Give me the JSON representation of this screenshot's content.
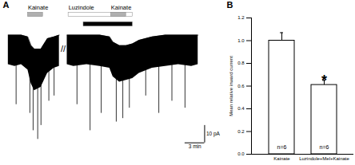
{
  "chart_data": [
    {
      "type": "trace",
      "panel_label": "A",
      "color": "#000000",
      "tick_labels": false,
      "xlim": [
        -1.2,
        33
      ],
      "ylim": [
        -75,
        20
      ],
      "segments": [
        {
          "x": [
            0,
            1,
            2,
            3,
            3.5,
            4,
            5,
            5.5,
            6,
            7,
            7.8
          ],
          "upper": [
            0,
            0,
            0,
            -1,
            -6,
            -8,
            -8,
            -5,
            -2,
            -1,
            0
          ],
          "lower": [
            -17,
            -18,
            -17,
            -20,
            -28,
            -32,
            -30,
            -26,
            -22,
            -19,
            -18
          ]
        },
        {
          "x": [
            9,
            10,
            12,
            14,
            15.5,
            16,
            17,
            18,
            19,
            20,
            22,
            24,
            26,
            28,
            29
          ],
          "upper": [
            0,
            0,
            0,
            0,
            -1,
            -4,
            -6,
            -6,
            -5,
            -3,
            -1,
            0,
            0,
            0,
            0
          ],
          "lower": [
            -17,
            -18,
            -17,
            -18,
            -19,
            -24,
            -27,
            -26,
            -25,
            -22,
            -19,
            -18,
            -17,
            -18,
            -17
          ]
        }
      ],
      "spikes": {
        "x": [
          1.2,
          3.3,
          3.8,
          4.5,
          5.0,
          6.2,
          7.0,
          10.5,
          12.5,
          14.2,
          16.5,
          17.5,
          18.5,
          21,
          23,
          25,
          27
        ],
        "y": [
          -40,
          -45,
          -55,
          -60,
          -52,
          -38,
          -35,
          -40,
          -55,
          -45,
          -50,
          -48,
          -42,
          -35,
          -45,
          -38,
          -42
        ]
      },
      "applications": [
        {
          "label": "Kainate",
          "start": 3.0,
          "end": 5.3,
          "color": "#b0b0b0"
        },
        {
          "label": "Luzindole",
          "start": 9.2,
          "end": 19,
          "color": "#ffffff"
        },
        {
          "label": null,
          "start": 11.5,
          "end": 19,
          "color": "#000000"
        },
        {
          "label": "Kainate",
          "start": 15.7,
          "end": 18,
          "color": "#b0b0b0"
        }
      ],
      "break_label": "//",
      "break_x": 8.4,
      "scale_bars": {
        "x": {
          "value": 3,
          "label": "3 min"
        },
        "y": {
          "value": 10,
          "label": "10 pA"
        }
      }
    },
    {
      "type": "bar",
      "panel_label": "B",
      "categories": [
        "Kainate",
        "Luzindole+Mel+Kainate"
      ],
      "values": [
        1.0,
        0.61
      ],
      "errors": [
        0.07,
        0.04
      ],
      "color": "#ffffff",
      "ylabel": "Mean relative inward current",
      "ylim": [
        0,
        1.2
      ],
      "yticks": [
        {
          "value": 0,
          "label": "0.0"
        },
        0.2,
        0.4,
        0.6,
        0.8,
        {
          "value": 1,
          "label": "1.0"
        },
        1.2
      ],
      "annotations": [
        {
          "category": "Kainate",
          "text": "n=6"
        },
        {
          "category": "Luzindole+Mel+Kainate",
          "text": "n=6"
        }
      ],
      "significance": [
        {
          "category": "Luzindole+Mel+Kainate",
          "text": "*"
        }
      ]
    }
  ]
}
